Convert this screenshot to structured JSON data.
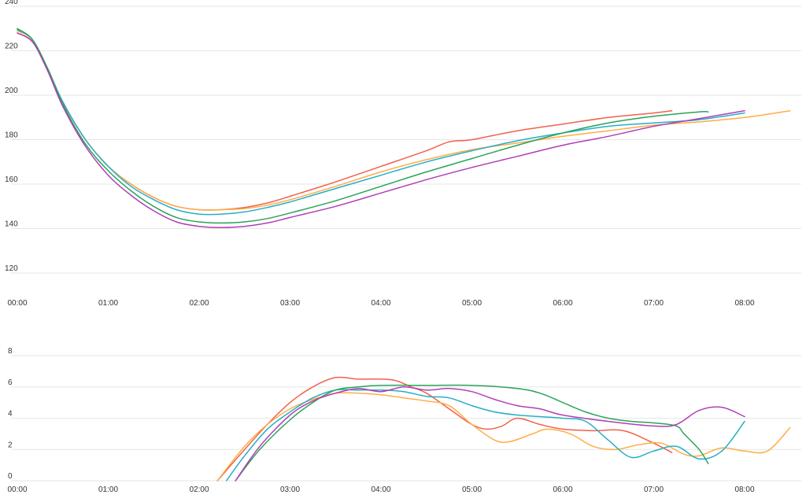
{
  "chart_data": [
    {
      "type": "line",
      "title": "",
      "xlabel": "",
      "ylabel": "",
      "xlim": [
        "00:00",
        "08:50"
      ],
      "ylim": [
        115,
        240
      ],
      "y_ticks": [
        "120",
        "140",
        "160",
        "180",
        "200",
        "220",
        "240"
      ],
      "x_ticks": [
        "00:00",
        "01:00",
        "02:00",
        "03:00",
        "04:00",
        "05:00",
        "06:00",
        "07:00",
        "08:00"
      ],
      "grid": true,
      "legend": "none",
      "series": [
        {
          "color": "#f0614c",
          "points": [
            [
              "00:00",
              228
            ],
            [
              "00:10",
              224
            ],
            [
              "00:20",
              212
            ],
            [
              "00:30",
              197
            ],
            [
              "00:45",
              180
            ],
            [
              "01:00",
              168
            ],
            [
              "01:15",
              160
            ],
            [
              "01:30",
              154
            ],
            [
              "01:45",
              150
            ],
            [
              "02:00",
              148.5
            ],
            [
              "02:15",
              148.5
            ],
            [
              "02:30",
              149.5
            ],
            [
              "02:45",
              151.5
            ],
            [
              "03:00",
              154.5
            ],
            [
              "03:30",
              161
            ],
            [
              "04:00",
              168
            ],
            [
              "04:30",
              175
            ],
            [
              "04:45",
              179
            ],
            [
              "05:00",
              180
            ],
            [
              "05:30",
              184
            ],
            [
              "06:00",
              187
            ],
            [
              "06:30",
              190
            ],
            [
              "07:00",
              192
            ],
            [
              "07:12",
              193
            ]
          ]
        },
        {
          "color": "#ffad47",
          "points": [
            [
              "00:00",
              229
            ],
            [
              "00:10",
              225
            ],
            [
              "00:20",
              212
            ],
            [
              "00:30",
              197
            ],
            [
              "00:45",
              180
            ],
            [
              "01:00",
              168
            ],
            [
              "01:15",
              160
            ],
            [
              "01:30",
              154
            ],
            [
              "01:45",
              150
            ],
            [
              "02:00",
              148.5
            ],
            [
              "02:15",
              148.5
            ],
            [
              "02:30",
              149
            ],
            [
              "02:45",
              150.5
            ],
            [
              "03:00",
              153
            ],
            [
              "03:30",
              159
            ],
            [
              "04:00",
              165.5
            ],
            [
              "04:30",
              171
            ],
            [
              "05:00",
              175.5
            ],
            [
              "05:30",
              178.5
            ],
            [
              "06:00",
              181.5
            ],
            [
              "06:30",
              184
            ],
            [
              "07:00",
              186.5
            ],
            [
              "07:30",
              188
            ],
            [
              "08:00",
              190
            ],
            [
              "08:30",
              193
            ]
          ]
        },
        {
          "color": "#27aec6",
          "points": [
            [
              "00:00",
              229.5
            ],
            [
              "00:10",
              225
            ],
            [
              "00:20",
              212
            ],
            [
              "00:30",
              197
            ],
            [
              "00:45",
              180
            ],
            [
              "01:00",
              168
            ],
            [
              "01:15",
              159
            ],
            [
              "01:30",
              153
            ],
            [
              "01:45",
              148.5
            ],
            [
              "02:00",
              146.5
            ],
            [
              "02:15",
              146.5
            ],
            [
              "02:30",
              147.5
            ],
            [
              "02:45",
              149.5
            ],
            [
              "03:00",
              152
            ],
            [
              "03:30",
              158
            ],
            [
              "04:00",
              164
            ],
            [
              "04:30",
              170
            ],
            [
              "05:00",
              175
            ],
            [
              "05:30",
              179.5
            ],
            [
              "06:00",
              183
            ],
            [
              "06:30",
              186
            ],
            [
              "07:00",
              187.5
            ],
            [
              "07:30",
              189
            ],
            [
              "08:00",
              192
            ]
          ]
        },
        {
          "color": "#2ba35a",
          "points": [
            [
              "00:00",
              230
            ],
            [
              "00:10",
              225
            ],
            [
              "00:20",
              212
            ],
            [
              "00:30",
              196
            ],
            [
              "00:45",
              178
            ],
            [
              "01:00",
              166
            ],
            [
              "01:15",
              157
            ],
            [
              "01:30",
              150
            ],
            [
              "01:45",
              145
            ],
            [
              "02:00",
              143
            ],
            [
              "02:15",
              142.5
            ],
            [
              "02:30",
              143
            ],
            [
              "02:45",
              144.5
            ],
            [
              "03:00",
              147
            ],
            [
              "03:30",
              152.5
            ],
            [
              "04:00",
              159
            ],
            [
              "04:30",
              165.5
            ],
            [
              "05:00",
              171.5
            ],
            [
              "05:30",
              177.5
            ],
            [
              "06:00",
              183
            ],
            [
              "06:30",
              187.5
            ],
            [
              "07:00",
              190.5
            ],
            [
              "07:30",
              192.5
            ],
            [
              "07:36",
              192.5
            ]
          ]
        },
        {
          "color": "#b03fb6",
          "points": [
            [
              "00:00",
              228
            ],
            [
              "00:10",
              224
            ],
            [
              "00:20",
              211
            ],
            [
              "00:30",
              195
            ],
            [
              "00:45",
              177
            ],
            [
              "01:00",
              164
            ],
            [
              "01:15",
              155
            ],
            [
              "01:30",
              148
            ],
            [
              "01:45",
              143
            ],
            [
              "02:00",
              141
            ],
            [
              "02:15",
              140.5
            ],
            [
              "02:30",
              141
            ],
            [
              "02:45",
              142.5
            ],
            [
              "03:00",
              145
            ],
            [
              "03:30",
              150
            ],
            [
              "04:00",
              156
            ],
            [
              "04:30",
              162
            ],
            [
              "05:00",
              167.5
            ],
            [
              "05:30",
              172.5
            ],
            [
              "06:00",
              177.5
            ],
            [
              "06:30",
              181.5
            ],
            [
              "07:00",
              186
            ],
            [
              "07:30",
              189.5
            ],
            [
              "08:00",
              193
            ]
          ]
        }
      ]
    },
    {
      "type": "line",
      "title": "",
      "xlabel": "",
      "ylabel": "",
      "xlim": [
        "00:00",
        "08:50"
      ],
      "ylim": [
        0,
        8
      ],
      "y_ticks": [
        "0",
        "2",
        "4",
        "6",
        "8"
      ],
      "x_ticks": [
        "00:00",
        "01:00",
        "02:00",
        "03:00",
        "04:00",
        "05:00",
        "06:00",
        "07:00",
        "08:00"
      ],
      "grid": true,
      "legend": "none",
      "series": [
        {
          "color": "#f0614c",
          "points": [
            [
              "02:12",
              0
            ],
            [
              "02:30",
              2
            ],
            [
              "02:45",
              3.6
            ],
            [
              "03:00",
              5
            ],
            [
              "03:15",
              6
            ],
            [
              "03:30",
              6.6
            ],
            [
              "03:45",
              6.5
            ],
            [
              "04:00",
              6.5
            ],
            [
              "04:10",
              6.4
            ],
            [
              "04:20",
              6
            ],
            [
              "04:30",
              5.6
            ],
            [
              "04:45",
              4.6
            ],
            [
              "05:00",
              3.6
            ],
            [
              "05:10",
              3.3
            ],
            [
              "05:20",
              3.5
            ],
            [
              "05:30",
              4
            ],
            [
              "05:45",
              3.6
            ],
            [
              "06:00",
              3.3
            ],
            [
              "06:20",
              3.2
            ],
            [
              "06:40",
              3.2
            ],
            [
              "07:00",
              2.4
            ],
            [
              "07:12",
              1.8
            ]
          ]
        },
        {
          "color": "#ffad47",
          "points": [
            [
              "02:12",
              0
            ],
            [
              "02:30",
              2.2
            ],
            [
              "02:45",
              3.6
            ],
            [
              "03:00",
              4.6
            ],
            [
              "03:15",
              5.2
            ],
            [
              "03:30",
              5.6
            ],
            [
              "03:45",
              5.6
            ],
            [
              "04:00",
              5.5
            ],
            [
              "04:15",
              5.3
            ],
            [
              "04:30",
              5.1
            ],
            [
              "04:45",
              4.8
            ],
            [
              "05:00",
              3.6
            ],
            [
              "05:15",
              2.6
            ],
            [
              "05:25",
              2.5
            ],
            [
              "05:40",
              3
            ],
            [
              "05:50",
              3.3
            ],
            [
              "06:05",
              3
            ],
            [
              "06:20",
              2.2
            ],
            [
              "06:35",
              2
            ],
            [
              "06:50",
              2.3
            ],
            [
              "07:05",
              2.4
            ],
            [
              "07:20",
              1.7
            ],
            [
              "07:30",
              1.6
            ],
            [
              "07:45",
              2.1
            ],
            [
              "08:00",
              1.9
            ],
            [
              "08:15",
              1.9
            ],
            [
              "08:30",
              3.4
            ]
          ]
        },
        {
          "color": "#27aec6",
          "points": [
            [
              "02:18",
              0
            ],
            [
              "02:30",
              1.6
            ],
            [
              "02:45",
              3.3
            ],
            [
              "03:00",
              4.4
            ],
            [
              "03:15",
              5.3
            ],
            [
              "03:30",
              5.8
            ],
            [
              "03:45",
              5.8
            ],
            [
              "04:00",
              5.8
            ],
            [
              "04:15",
              5.7
            ],
            [
              "04:30",
              5.4
            ],
            [
              "04:45",
              5.3
            ],
            [
              "05:00",
              4.8
            ],
            [
              "05:15",
              4.4
            ],
            [
              "05:30",
              4.2
            ],
            [
              "05:45",
              4.1
            ],
            [
              "06:00",
              4
            ],
            [
              "06:15",
              3.8
            ],
            [
              "06:30",
              2.6
            ],
            [
              "06:45",
              1.5
            ],
            [
              "07:00",
              1.9
            ],
            [
              "07:15",
              2.2
            ],
            [
              "07:30",
              1.4
            ],
            [
              "07:45",
              1.9
            ],
            [
              "08:00",
              3.8
            ]
          ]
        },
        {
          "color": "#2ba35a",
          "points": [
            [
              "02:24",
              0
            ],
            [
              "02:40",
              2
            ],
            [
              "03:00",
              3.9
            ],
            [
              "03:15",
              5
            ],
            [
              "03:30",
              5.8
            ],
            [
              "03:45",
              6
            ],
            [
              "04:00",
              6.1
            ],
            [
              "04:30",
              6.1
            ],
            [
              "05:00",
              6.1
            ],
            [
              "05:30",
              5.9
            ],
            [
              "05:45",
              5.6
            ],
            [
              "06:00",
              5
            ],
            [
              "06:15",
              4.4
            ],
            [
              "06:30",
              4
            ],
            [
              "06:45",
              3.8
            ],
            [
              "07:00",
              3.7
            ],
            [
              "07:15",
              3.5
            ],
            [
              "07:20",
              3
            ],
            [
              "07:30",
              2
            ],
            [
              "07:36",
              1.1
            ]
          ]
        },
        {
          "color": "#b03fb6",
          "points": [
            [
              "02:24",
              0
            ],
            [
              "02:40",
              2.2
            ],
            [
              "03:00",
              4.2
            ],
            [
              "03:15",
              5.1
            ],
            [
              "03:30",
              5.6
            ],
            [
              "03:45",
              5.9
            ],
            [
              "04:00",
              5.7
            ],
            [
              "04:15",
              6
            ],
            [
              "04:30",
              5.8
            ],
            [
              "04:45",
              5.9
            ],
            [
              "05:00",
              5.7
            ],
            [
              "05:15",
              5.2
            ],
            [
              "05:30",
              4.8
            ],
            [
              "05:45",
              4.6
            ],
            [
              "06:00",
              4.2
            ],
            [
              "06:30",
              3.8
            ],
            [
              "07:00",
              3.5
            ],
            [
              "07:15",
              3.6
            ],
            [
              "07:30",
              4.5
            ],
            [
              "07:45",
              4.7
            ],
            [
              "08:00",
              4.1
            ]
          ]
        }
      ]
    }
  ]
}
